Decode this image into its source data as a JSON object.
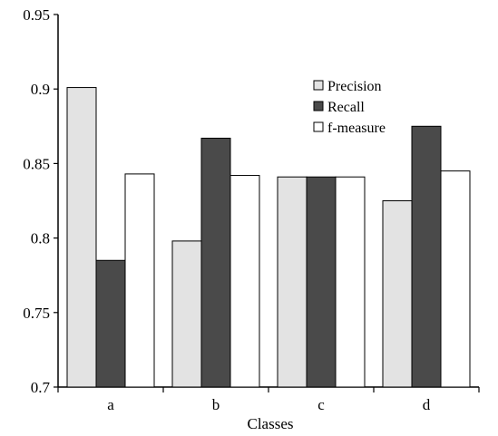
{
  "chart_data": {
    "type": "bar",
    "title": "",
    "xlabel": "Classes",
    "ylabel": "",
    "categories": [
      "a",
      "b",
      "c",
      "d"
    ],
    "ylim": [
      0.7,
      0.95
    ],
    "yticks": [
      "0.7",
      "0.75",
      "0.8",
      "0.85",
      "0.9",
      "0.95"
    ],
    "grid": false,
    "legend_position": "top-right",
    "series": [
      {
        "name": "Precision",
        "color": "#e3e3e3",
        "values": [
          0.901,
          0.798,
          0.841,
          0.825
        ]
      },
      {
        "name": "Recall",
        "color": "#4a4a4a",
        "values": [
          0.785,
          0.867,
          0.841,
          0.875
        ]
      },
      {
        "name": "f-measure",
        "color": "#ffffff",
        "values": [
          0.843,
          0.842,
          0.841,
          0.845
        ]
      }
    ]
  }
}
